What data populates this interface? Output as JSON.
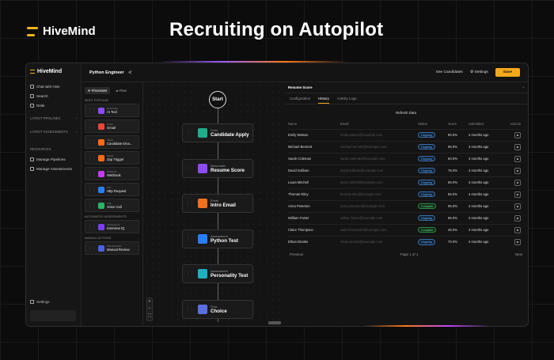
{
  "brand": "HiveMind",
  "headline": "Recruiting on Autopilot",
  "colors": {
    "accent": "#f5a81b",
    "ongoing": "#6ab0ff",
    "complete": "#6ee08a"
  },
  "sidebar": {
    "logo": "HiveMind",
    "items": [
      {
        "label": "Chat with Hive",
        "icon": "chat-icon"
      },
      {
        "label": "Search",
        "icon": "search-icon"
      },
      {
        "label": "Desk",
        "icon": "desk-icon"
      }
    ],
    "sections": [
      "LATEST PIPELINES",
      "LATEST ASSESSMENTS"
    ],
    "resources_label": "RESOURCES",
    "resources": [
      "Manage Pipelines",
      "Manage Assessments"
    ],
    "settings": "Settings"
  },
  "topbar": {
    "title": "Python Engineer",
    "see_candidates": "See Candidates",
    "settings": "Settings",
    "save": "Save"
  },
  "nodes_panel": {
    "tabs": [
      "Processes",
      "Flow"
    ],
    "most_popular": "MOST POPULAR",
    "popular": [
      {
        "sub": "Resumatic",
        "main": "AI Tool",
        "color": "#8b4cf5"
      },
      {
        "sub": "Email",
        "main": "Gmail",
        "color": "#e9453b"
      },
      {
        "sub": "Zapier",
        "main": "Candidate Ema...",
        "color": "#ff6a1a"
      },
      {
        "sub": "Zapier",
        "main": "Zap Trigger",
        "color": "#ff6a1a"
      },
      {
        "sub": "Webhook",
        "main": "Webhook",
        "color": "#c33df0"
      },
      {
        "sub": "API",
        "main": "Http Request",
        "color": "#2a7ef5"
      },
      {
        "sub": "Call",
        "main": "Voice Call",
        "color": "#2bb36a"
      }
    ],
    "automated_label": "AUTOMATED ASSESSMENTS",
    "automated": [
      {
        "sub": "Assessment",
        "main": "Interview IQ",
        "color": "#7a3ff0"
      }
    ],
    "manual_label": "MANUAL ACTIONS",
    "manual": [
      {
        "sub": "Manual Action",
        "main": "Manual Review",
        "color": "#4a60e0"
      }
    ]
  },
  "canvas": {
    "start": "Start",
    "nodes": [
      {
        "sub": "Form",
        "main": "Candidate Apply",
        "color": "#1fae8a"
      },
      {
        "sub": "Resumatic",
        "main": "Resume Score",
        "color": "#8b4cf5"
      },
      {
        "sub": "Email",
        "main": "Intro Email",
        "color": "#f07020"
      },
      {
        "sub": "Assessment",
        "main": "Python Test",
        "color": "#2a7ef5"
      },
      {
        "sub": "Assessment",
        "main": "Personality Test",
        "color": "#1fb0c0"
      },
      {
        "sub": "Flow",
        "main": "Choice",
        "color": "#5b6ee0"
      }
    ],
    "zoom": [
      "+",
      "−",
      "⛶"
    ]
  },
  "panel": {
    "title": "Resume Score",
    "tabs": [
      "Configuration",
      "History",
      "Activity Logs"
    ],
    "refresh": "Refresh Data",
    "columns": [
      "Name",
      "Email",
      "Status",
      "Score",
      "Submitted",
      "Actions"
    ],
    "rows": [
      {
        "name": "Emily Watson",
        "email": "emily.watson@example.com",
        "status": "Ongoing",
        "score": "80.0%",
        "submitted": "4 months ago"
      },
      {
        "name": "Michael Bennett",
        "email": "michael.bennett@example.com",
        "status": "Ongoing",
        "score": "85.0%",
        "submitted": "4 months ago"
      },
      {
        "name": "Sarah Coleman",
        "email": "sarah.coleman@example.com",
        "status": "Ongoing",
        "score": "60.0%",
        "submitted": "4 months ago"
      },
      {
        "name": "David Sullivan",
        "email": "david.sullivan@example.com",
        "status": "Ongoing",
        "score": "75.0%",
        "submitted": "4 months ago"
      },
      {
        "name": "Laura Mitchell",
        "email": "laura.mitchell@example.com",
        "status": "Ongoing",
        "score": "65.0%",
        "submitted": "4 months ago"
      },
      {
        "name": "Thomas Riley",
        "email": "thomas.riley@example.com",
        "status": "Ongoing",
        "score": "65.0%",
        "submitted": "4 months ago"
      },
      {
        "name": "Anna Peterson",
        "email": "anna.peterson@example.com",
        "status": "Complete",
        "score": "95.0%",
        "submitted": "4 months ago"
      },
      {
        "name": "William Foster",
        "email": "william.foster@example.com",
        "status": "Ongoing",
        "score": "85.0%",
        "submitted": "3 months ago"
      },
      {
        "name": "Claire Thompson",
        "email": "claire.thompson@example.com",
        "status": "Complete",
        "score": "45.0%",
        "submitted": "4 months ago"
      },
      {
        "name": "Ethan Brooks",
        "email": "ethan.brooks@example.com",
        "status": "Ongoing",
        "score": "70.0%",
        "submitted": "4 months ago"
      }
    ],
    "previous": "Previous",
    "page": "Page 1 of 1",
    "next": "Next"
  }
}
